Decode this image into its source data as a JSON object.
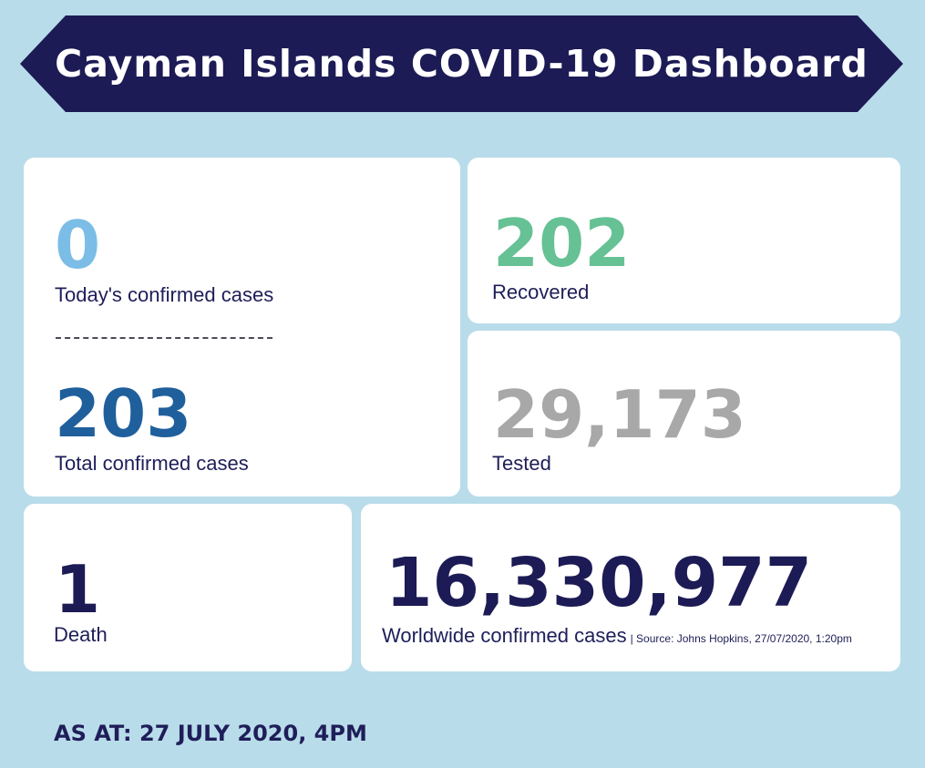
{
  "header": {
    "title": "Cayman Islands COVID-19 Dashboard"
  },
  "stats": {
    "today_confirmed": {
      "value": "0",
      "label": "Today's confirmed cases"
    },
    "total_confirmed": {
      "value": "203",
      "label": "Total confirmed cases"
    },
    "recovered": {
      "value": "202",
      "label": "Recovered"
    },
    "tested": {
      "value": "29,173",
      "label": "Tested"
    },
    "death": {
      "value": "1",
      "label": "Death"
    },
    "worldwide": {
      "value": "16,330,977",
      "label": "Worldwide confirmed cases",
      "source": "| Source: Johns Hopkins, 27/07/2020, 1:20pm"
    }
  },
  "footer": {
    "as_at": "AS AT: 27 JULY 2020, 4PM"
  },
  "colors": {
    "background": "#b9dcea",
    "banner": "#1c1b55",
    "today_value": "#7bbde6",
    "total_value": "#1f5f9c",
    "recovered_value": "#66c194",
    "tested_value": "#a8a8a8",
    "dark_value": "#1c1b55"
  }
}
